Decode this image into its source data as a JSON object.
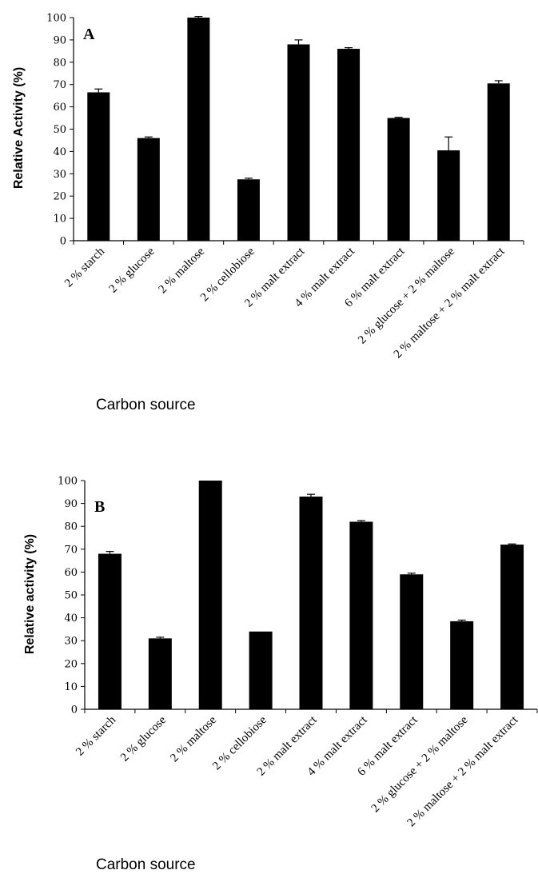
{
  "chart_data": [
    {
      "type": "bar",
      "panel": "A",
      "ylabel": "Relative Activity (%)",
      "xlabel": "Carbon source",
      "ylim": [
        0,
        100
      ],
      "yticks": [
        0,
        10,
        20,
        30,
        40,
        50,
        60,
        70,
        80,
        90,
        100
      ],
      "categories": [
        "2 % starch",
        "2 % glucose",
        "2 % maltose",
        "2 % cellobiose",
        "2 % malt extract",
        "4 % malt extract",
        "6 % malt extract",
        "2 % glucose + 2 % maltose",
        "2 % maltose + 2 % malt extract"
      ],
      "values": [
        66.5,
        46,
        100,
        27.5,
        88,
        86,
        55,
        40.5,
        70.5
      ],
      "errors": [
        1.5,
        0.5,
        0.5,
        0.5,
        2,
        0.5,
        0.3,
        6,
        1.2
      ],
      "grid": false,
      "bar_color": "#000000"
    },
    {
      "type": "bar",
      "panel": "B",
      "ylabel": "Relative activity (%)",
      "xlabel": "Carbon source",
      "ylim": [
        0,
        100
      ],
      "yticks": [
        0,
        10,
        20,
        30,
        40,
        50,
        60,
        70,
        80,
        90,
        100
      ],
      "categories": [
        "2 % starch",
        "2 % glucose",
        "2 % maltose",
        "2 % cellobiose",
        "2 % malt extract",
        "4 % malt extract",
        "6 % malt extract",
        "2 % glucose + 2 % maltose",
        "2 % maltose + 2 % malt extract"
      ],
      "values": [
        68,
        31,
        100,
        34,
        93,
        82,
        59,
        38.5,
        72
      ],
      "errors": [
        1,
        0.5,
        0,
        0,
        1,
        0.5,
        0.5,
        0.5,
        0.3
      ],
      "grid": false,
      "bar_color": "#000000"
    }
  ]
}
